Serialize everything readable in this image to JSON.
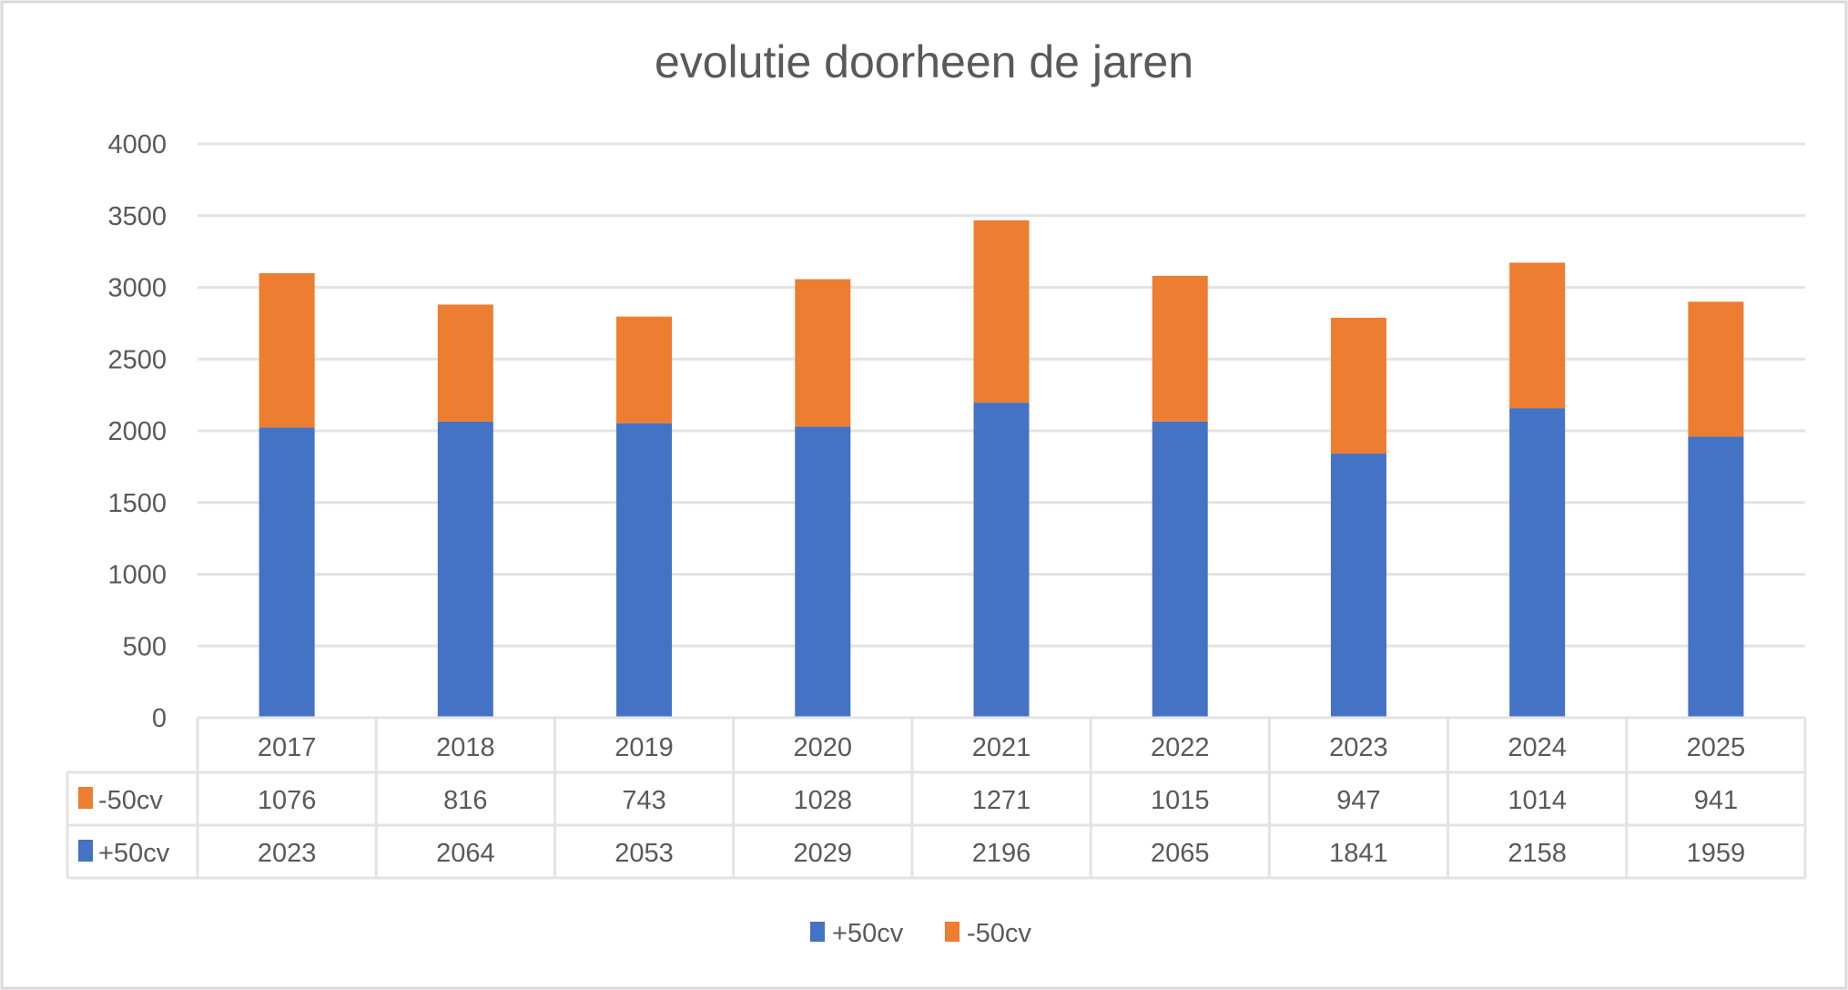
{
  "chart_data": {
    "type": "bar",
    "stacked": true,
    "title": "evolutie doorheen de jaren",
    "categories": [
      "2017",
      "2018",
      "2019",
      "2020",
      "2021",
      "2022",
      "2023",
      "2024",
      "2025"
    ],
    "series": [
      {
        "name": "+50cv",
        "color": "#4472C4",
        "values": [
          2023,
          2064,
          2053,
          2029,
          2196,
          2065,
          1841,
          2158,
          1959
        ]
      },
      {
        "name": "-50cv",
        "color": "#ED7D31",
        "values": [
          1076,
          816,
          743,
          1028,
          1271,
          1015,
          947,
          1014,
          941
        ]
      }
    ],
    "ylim": [
      0,
      4000
    ],
    "yticks": [
      "0",
      "500",
      "1000",
      "1500",
      "2000",
      "2500",
      "3000",
      "3500",
      "4000"
    ],
    "grid": true,
    "data_table": true,
    "legend": "bottom"
  }
}
